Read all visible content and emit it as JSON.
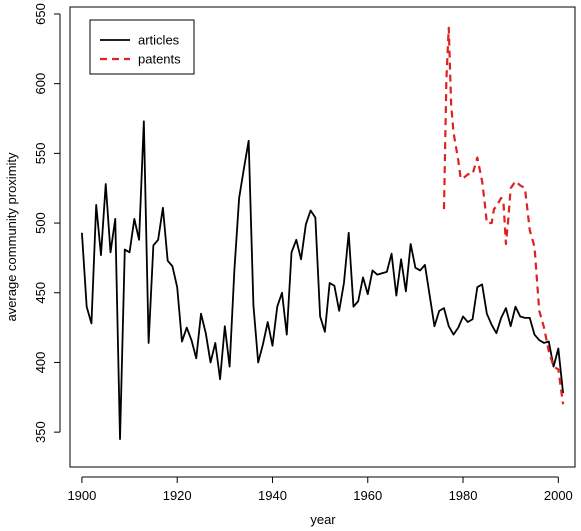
{
  "chart_data": {
    "type": "line",
    "title": "",
    "xlabel": "year",
    "ylabel": "average community proximity",
    "xlim": [
      1897.5,
      2003.5
    ],
    "ylim": [
      325,
      655
    ],
    "xticks": [
      1900,
      1920,
      1940,
      1960,
      1980,
      2000
    ],
    "yticks": [
      350,
      400,
      450,
      500,
      550,
      600,
      650
    ],
    "grid": false,
    "legend_position": "top-left",
    "series": [
      {
        "name": "articles",
        "color": "#000000",
        "dash": "solid",
        "x": [
          1900,
          1901,
          1902,
          1903,
          1904,
          1905,
          1906,
          1907,
          1908,
          1909,
          1910,
          1911,
          1912,
          1913,
          1914,
          1915,
          1916,
          1917,
          1918,
          1919,
          1920,
          1921,
          1922,
          1923,
          1924,
          1925,
          1926,
          1927,
          1928,
          1929,
          1930,
          1931,
          1932,
          1933,
          1934,
          1935,
          1936,
          1937,
          1938,
          1939,
          1940,
          1941,
          1942,
          1943,
          1944,
          1945,
          1946,
          1947,
          1948,
          1949,
          1950,
          1951,
          1952,
          1953,
          1954,
          1955,
          1956,
          1957,
          1958,
          1959,
          1960,
          1961,
          1962,
          1963,
          1964,
          1965,
          1966,
          1967,
          1968,
          1969,
          1970,
          1971,
          1972,
          1973,
          1974,
          1975,
          1976,
          1977,
          1978,
          1979,
          1980,
          1981,
          1982,
          1983,
          1984,
          1985,
          1986,
          1987,
          1988,
          1989,
          1990,
          1991,
          1992,
          1993,
          1994,
          1995,
          1996,
          1997,
          1998,
          1999,
          2000,
          2001
        ],
        "y": [
          493,
          440,
          428,
          513,
          477,
          528,
          479,
          503,
          345,
          481,
          479,
          503,
          488,
          573,
          414,
          484,
          488,
          511,
          473,
          469,
          454,
          415,
          425,
          416,
          403,
          435,
          421,
          400,
          414,
          388,
          426,
          397,
          466,
          518,
          539,
          559,
          441,
          400,
          413,
          429,
          412,
          440,
          450,
          420,
          479,
          488,
          474,
          499,
          509,
          504,
          433,
          422,
          457,
          455,
          437,
          457,
          493,
          440,
          444,
          461,
          449,
          466,
          463,
          464,
          465,
          478,
          448,
          474,
          451,
          485,
          468,
          466,
          470,
          448,
          426,
          437,
          439,
          426,
          420,
          425,
          433,
          429,
          431,
          454,
          456,
          435,
          427,
          421,
          432,
          439,
          426,
          440,
          433,
          432,
          432,
          420,
          416,
          414,
          415,
          397,
          410,
          378
        ]
      },
      {
        "name": "patents",
        "color": "#dd2222",
        "dash": "dashed",
        "x": [
          1976,
          1976.5,
          1977,
          1977.5,
          1978,
          1979,
          1979.5,
          1980,
          1981,
          1982,
          1983,
          1984,
          1984.5,
          1985,
          1986,
          1986.5,
          1987,
          1988,
          1988.5,
          1989,
          1989.5,
          1990,
          1991,
          1992,
          1993,
          1994,
          1995,
          1996,
          1997,
          1998,
          1999,
          2000,
          2001
        ],
        "y": [
          510,
          603,
          640,
          585,
          565,
          545,
          532,
          532,
          535,
          535,
          547,
          530,
          516,
          500,
          500,
          510,
          512,
          518,
          514,
          485,
          503,
          525,
          530,
          527,
          525,
          495,
          483,
          437,
          425,
          408,
          397,
          395,
          370
        ]
      }
    ]
  }
}
